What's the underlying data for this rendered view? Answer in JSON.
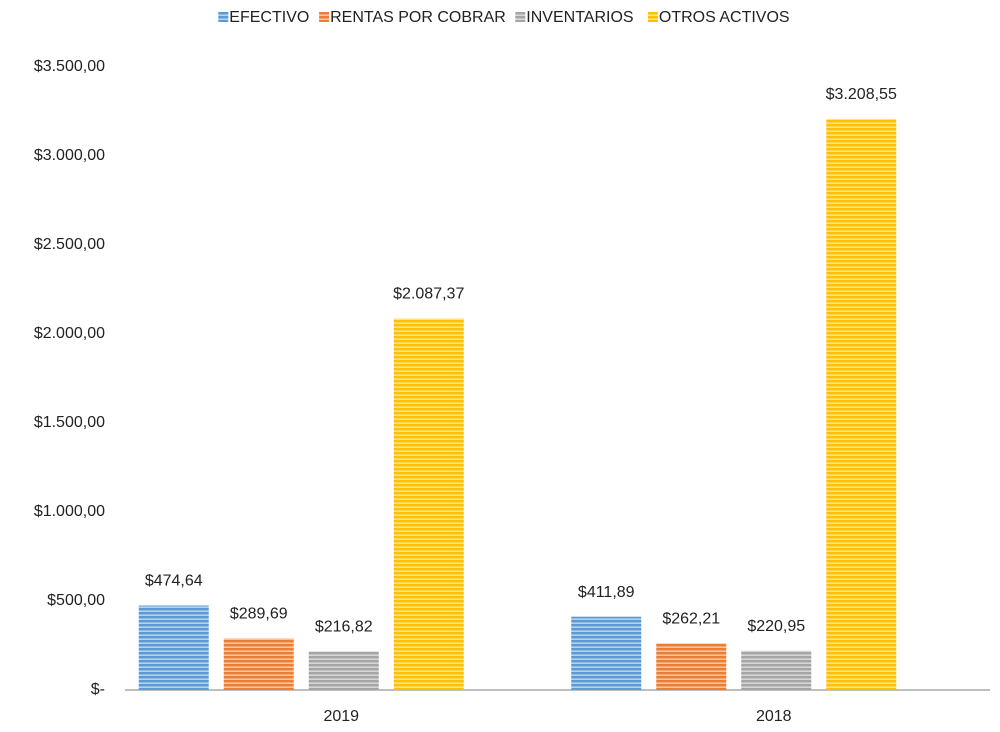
{
  "chart_data": {
    "type": "bar",
    "categories": [
      "2019",
      "2018"
    ],
    "series": [
      {
        "name": "EFECTIVO",
        "color": "#5b9bd5",
        "values": [
          474.64,
          411.89
        ],
        "value_labels": [
          "$474,64",
          "$411,89"
        ]
      },
      {
        "name": "RENTAS POR COBRAR",
        "color": "#ed7d31",
        "values": [
          289.69,
          262.21
        ],
        "value_labels": [
          "$289,69",
          "$262,21"
        ]
      },
      {
        "name": "INVENTARIOS",
        "color": "#a5a5a5",
        "values": [
          216.82,
          220.95
        ],
        "value_labels": [
          "$216,82",
          "$220,95"
        ]
      },
      {
        "name": "OTROS ACTIVOS",
        "color": "#ffc000",
        "values": [
          2087.37,
          3208.55
        ],
        "value_labels": [
          "$2.087,37",
          "$3.208,55"
        ]
      }
    ],
    "ylim": [
      0,
      3500
    ],
    "yticks": [
      {
        "value": 0,
        "label": "$-"
      },
      {
        "value": 500,
        "label": "$500,00"
      },
      {
        "value": 1000,
        "label": "$1.000,00"
      },
      {
        "value": 1500,
        "label": "$1.500,00"
      },
      {
        "value": 2000,
        "label": "$2.000,00"
      },
      {
        "value": 2500,
        "label": "$2.500,00"
      },
      {
        "value": 3000,
        "label": "$3.000,00"
      },
      {
        "value": 3500,
        "label": "$3.500,00"
      }
    ],
    "legend": "top",
    "grid": false
  }
}
